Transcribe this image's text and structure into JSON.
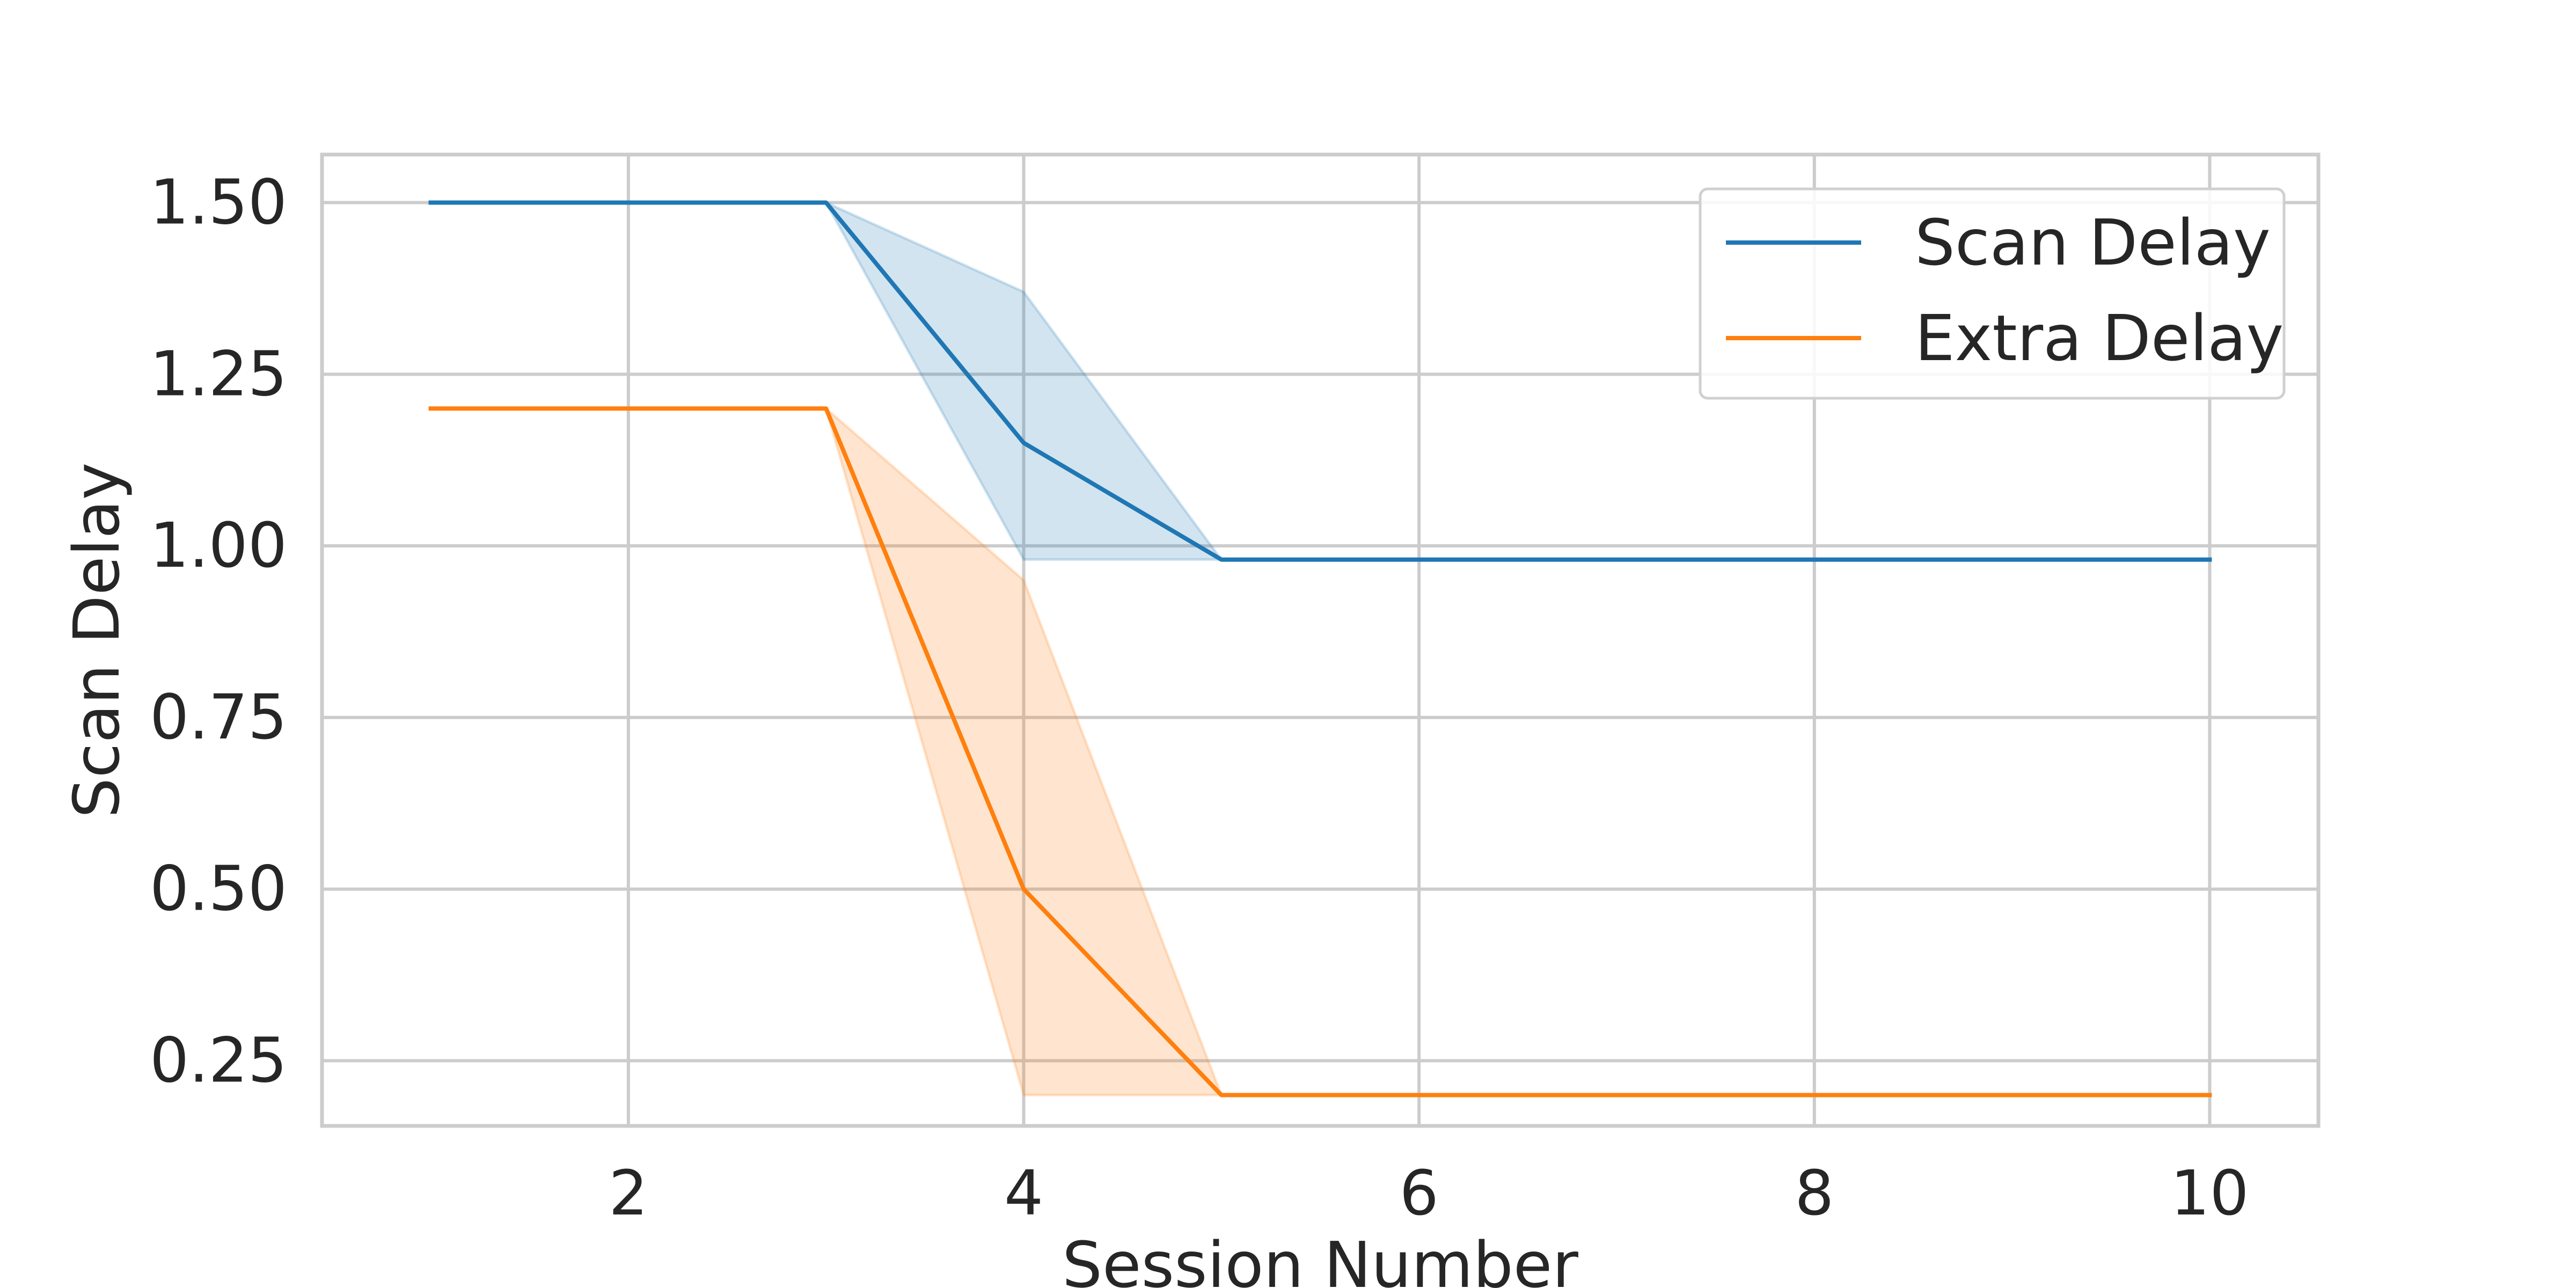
{
  "chart_data": {
    "type": "line",
    "title": "",
    "xlabel": "Session Number",
    "ylabel": "Scan Delay",
    "xlim": [
      0.45,
      10.55
    ],
    "ylim": [
      0.155,
      1.57
    ],
    "x_ticks": [
      2,
      4,
      6,
      8,
      10
    ],
    "y_ticks": [
      0.25,
      0.5,
      0.75,
      1.0,
      1.25,
      1.5
    ],
    "x_tick_labels": [
      "2",
      "4",
      "6",
      "8",
      "10"
    ],
    "y_tick_labels": [
      "0.25",
      "0.50",
      "0.75",
      "1.00",
      "1.25",
      "1.50"
    ],
    "grid": true,
    "legend_position": "top-right",
    "x": [
      1,
      2,
      3,
      4,
      5,
      6,
      7,
      8,
      9,
      10
    ],
    "series": [
      {
        "name": "Scan Delay",
        "color": "#1f77b4",
        "values": [
          1.5,
          1.5,
          1.5,
          1.15,
          0.98,
          0.98,
          0.98,
          0.98,
          0.98,
          0.98
        ],
        "ci_lower": [
          1.5,
          1.5,
          1.5,
          0.98,
          0.98,
          0.98,
          0.98,
          0.98,
          0.98,
          0.98
        ],
        "ci_upper": [
          1.5,
          1.5,
          1.5,
          1.37,
          0.98,
          0.98,
          0.98,
          0.98,
          0.98,
          0.98
        ]
      },
      {
        "name": "Extra Delay",
        "color": "#ff7f0e",
        "values": [
          1.2,
          1.2,
          1.2,
          0.5,
          0.2,
          0.2,
          0.2,
          0.2,
          0.2,
          0.2
        ],
        "ci_lower": [
          1.2,
          1.2,
          1.2,
          0.2,
          0.2,
          0.2,
          0.2,
          0.2,
          0.2,
          0.2
        ],
        "ci_upper": [
          1.2,
          1.2,
          1.2,
          0.95,
          0.2,
          0.2,
          0.2,
          0.2,
          0.2,
          0.2
        ]
      }
    ]
  }
}
